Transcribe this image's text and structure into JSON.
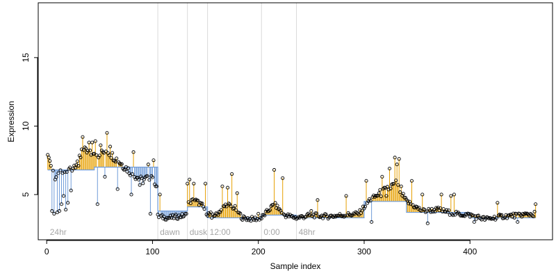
{
  "chart_data": {
    "type": "scatter",
    "xlabel": "Sample index",
    "ylabel": "Expression",
    "xlim": [
      -8,
      478
    ],
    "ylim": [
      1.7,
      19.0
    ],
    "x_ticks": [
      0,
      100,
      200,
      300,
      400
    ],
    "y_ticks": [
      5,
      10,
      15
    ],
    "grid": false,
    "legend": "none",
    "colors": {
      "above_stem": "#e69f00",
      "below_stem": "#6f9bd8",
      "step": "#6f9bd8",
      "points": "#000000",
      "separators": "#d9d9d9",
      "segment_text": "#a6a6a6"
    },
    "separators": [
      105,
      133,
      152,
      203,
      236
    ],
    "segments": [
      {
        "label": "24hr",
        "x": 3
      },
      {
        "label": "dawn",
        "x": 107
      },
      {
        "label": "dusk",
        "x": 135
      },
      {
        "label": "12:00",
        "x": 154
      },
      {
        "label": "0:00",
        "x": 205
      },
      {
        "label": "48hr",
        "x": 238
      }
    ],
    "step_baseline": [
      {
        "x0": 1,
        "x1": 45,
        "y": 6.8
      },
      {
        "x0": 45,
        "x1": 105,
        "y": 7.0
      },
      {
        "x0": 105,
        "x1": 133,
        "y": 3.8
      },
      {
        "x0": 133,
        "x1": 152,
        "y": 4.1
      },
      {
        "x0": 152,
        "x1": 203,
        "y": 3.3
      },
      {
        "x0": 203,
        "x1": 236,
        "y": 3.5
      },
      {
        "x0": 236,
        "x1": 300,
        "y": 3.3
      },
      {
        "x0": 300,
        "x1": 340,
        "y": 4.5
      },
      {
        "x0": 340,
        "x1": 400,
        "y": 3.7
      },
      {
        "x0": 400,
        "x1": 462,
        "y": 3.3
      }
    ],
    "anchors": [
      [
        1,
        7.9
      ],
      [
        8,
        6.2
      ],
      [
        15,
        6.6
      ],
      [
        25,
        7.0
      ],
      [
        35,
        8.2
      ],
      [
        45,
        7.8
      ],
      [
        57,
        8.2
      ],
      [
        70,
        7.3
      ],
      [
        80,
        6.6
      ],
      [
        90,
        6.0
      ],
      [
        100,
        6.4
      ],
      [
        104,
        5.6
      ],
      [
        105,
        3.4
      ],
      [
        115,
        3.3
      ],
      [
        125,
        3.4
      ],
      [
        132,
        3.5
      ],
      [
        133,
        4.4
      ],
      [
        140,
        4.6
      ],
      [
        147,
        4.2
      ],
      [
        152,
        3.6
      ],
      [
        160,
        3.5
      ],
      [
        170,
        4.3
      ],
      [
        178,
        4.0
      ],
      [
        185,
        3.3
      ],
      [
        195,
        3.2
      ],
      [
        203,
        3.3
      ],
      [
        215,
        4.3
      ],
      [
        225,
        3.5
      ],
      [
        236,
        3.3
      ],
      [
        250,
        3.5
      ],
      [
        265,
        3.4
      ],
      [
        280,
        3.5
      ],
      [
        295,
        3.6
      ],
      [
        305,
        4.6
      ],
      [
        320,
        5.3
      ],
      [
        330,
        5.8
      ],
      [
        340,
        4.5
      ],
      [
        355,
        3.8
      ],
      [
        370,
        3.9
      ],
      [
        385,
        3.6
      ],
      [
        400,
        3.5
      ],
      [
        415,
        3.2
      ],
      [
        430,
        3.4
      ],
      [
        445,
        3.5
      ],
      [
        462,
        3.6
      ]
    ],
    "spikes": [
      [
        1,
        7.9
      ],
      [
        2,
        7.7
      ],
      [
        5,
        3.8
      ],
      [
        7,
        3.6
      ],
      [
        10,
        3.7
      ],
      [
        12,
        3.8
      ],
      [
        14,
        4.3
      ],
      [
        16,
        4.9
      ],
      [
        18,
        3.9
      ],
      [
        20,
        4.4
      ],
      [
        23,
        5.3
      ],
      [
        30,
        7.1
      ],
      [
        33,
        8.3
      ],
      [
        34,
        9.2
      ],
      [
        40,
        8.8
      ],
      [
        43,
        8.8
      ],
      [
        46,
        8.9
      ],
      [
        48,
        4.3
      ],
      [
        51,
        8.6
      ],
      [
        55,
        6.3
      ],
      [
        57,
        9.5
      ],
      [
        60,
        8.5
      ],
      [
        67,
        5.4
      ],
      [
        72,
        6.9
      ],
      [
        80,
        5.0
      ],
      [
        82,
        8.1
      ],
      [
        88,
        5.7
      ],
      [
        96,
        7.2
      ],
      [
        98,
        3.6
      ],
      [
        101,
        7.5
      ],
      [
        107,
        5.0
      ],
      [
        133,
        5.8
      ],
      [
        135,
        6.1
      ],
      [
        139,
        5.8
      ],
      [
        150,
        5.8
      ],
      [
        156,
        3.3
      ],
      [
        166,
        5.6
      ],
      [
        171,
        5.5
      ],
      [
        175,
        6.5
      ],
      [
        180,
        5.1
      ],
      [
        200,
        3.6
      ],
      [
        215,
        6.8
      ],
      [
        223,
        6.2
      ],
      [
        250,
        3.8
      ],
      [
        256,
        4.6
      ],
      [
        283,
        4.9
      ],
      [
        302,
        6.0
      ],
      [
        307,
        3.0
      ],
      [
        317,
        6.3
      ],
      [
        321,
        4.9
      ],
      [
        324,
        6.9
      ],
      [
        329,
        7.7
      ],
      [
        331,
        7.2
      ],
      [
        333,
        7.6
      ],
      [
        335,
        5.6
      ],
      [
        345,
        6.0
      ],
      [
        355,
        5.0
      ],
      [
        360,
        2.9
      ],
      [
        373,
        5.0
      ],
      [
        382,
        4.9
      ],
      [
        385,
        5.0
      ],
      [
        404,
        3.0
      ],
      [
        426,
        4.4
      ],
      [
        445,
        3.0
      ],
      [
        460,
        3.4
      ],
      [
        462,
        4.3
      ]
    ]
  }
}
